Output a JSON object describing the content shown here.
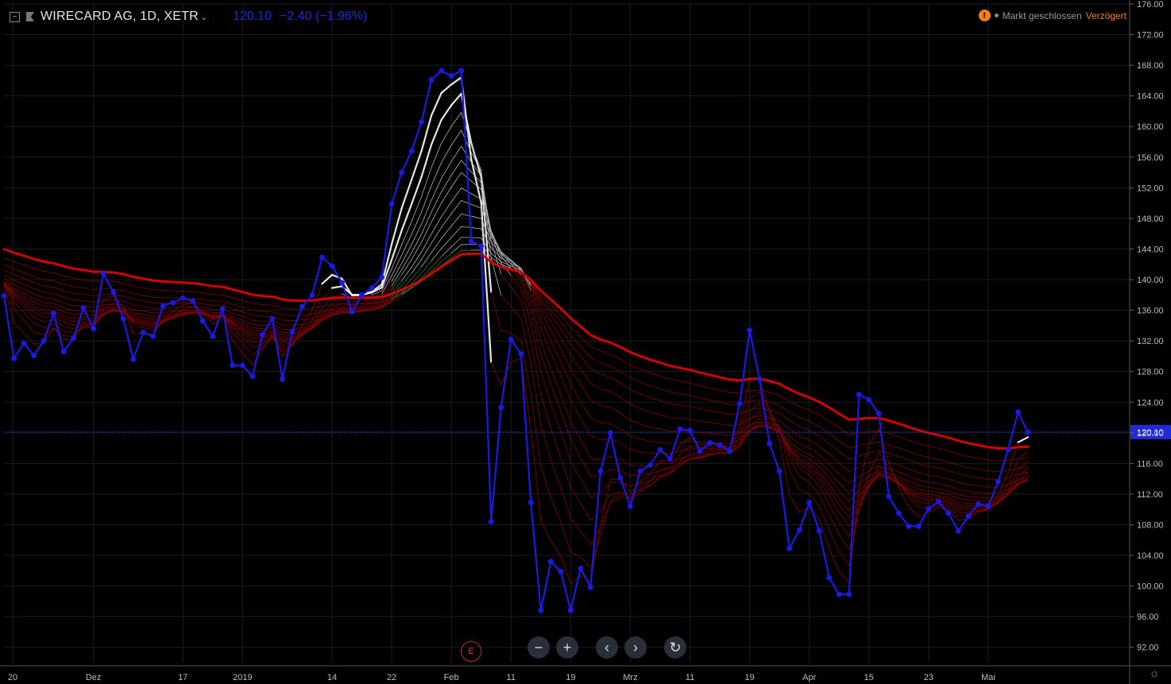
{
  "header": {
    "symbol": "WIRECARD AG, 1D, XETR",
    "last": "120.10",
    "change": "−2.40 (−1.96%)"
  },
  "status": {
    "warn_glyph": "!",
    "market": "Markt geschlossen",
    "delay": "Verzögert"
  },
  "controls": {
    "zoom_out": "−",
    "zoom_in": "+",
    "prev": "‹",
    "next": "›",
    "reset": "↻",
    "earnings": "E"
  },
  "colors": {
    "background": "#000000",
    "price": "#1a1ae6",
    "ribbon_dark": "#8b0000",
    "ribbon_bright": "#d50000",
    "ribbon_light": "#f2f2f2",
    "cross": "#2e7d32",
    "last_line": "#1f2bd8",
    "grid": "#1c1c1c"
  },
  "chart_data": {
    "type": "line",
    "ylim": [
      90,
      176
    ],
    "yticks": [
      92,
      96,
      100,
      104,
      108,
      112,
      116,
      120,
      124,
      128,
      132,
      136,
      140,
      144,
      148,
      152,
      156,
      160,
      164,
      168,
      172,
      176
    ],
    "ytick_labels": [
      "92.00",
      "96.00",
      "100.00",
      "104.00",
      "108.00",
      "112.00",
      "116.00",
      "120.00",
      "124.00",
      "128.00",
      "132.00",
      "136.00",
      "140.00",
      "144.00",
      "148.00",
      "152.00",
      "156.00",
      "160.00",
      "164.00",
      "168.00",
      "172.00",
      "176.00"
    ],
    "x_tick_labels": [
      "20",
      "Dez",
      "17",
      "2019",
      "14",
      "22",
      "Feb",
      "11",
      "19",
      "Mrz",
      "11",
      "19",
      "Apr",
      "15",
      "23",
      "Mai"
    ],
    "x_tick_index": [
      0,
      9,
      18,
      24,
      33,
      39,
      45,
      51,
      57,
      63,
      69,
      75,
      81,
      87,
      93,
      99
    ],
    "last_value": 120.1,
    "series": [
      {
        "values": [
          137.9,
          129.7,
          131.7,
          130.1,
          132.0,
          135.6,
          130.6,
          132.4,
          136.3,
          133.6,
          140.8,
          138.4,
          134.9,
          129.6,
          133.1,
          132.6,
          136.6,
          137.0,
          137.6,
          137.2,
          134.6,
          132.6,
          136.2,
          128.8,
          128.8,
          127.4,
          132.8,
          134.9,
          127.0,
          133.2,
          136.5,
          138.0,
          142.9,
          141.8,
          139.6,
          135.8,
          138.0,
          138.9,
          140.3,
          149.9,
          154.0,
          156.8,
          160.6,
          166.1,
          167.3,
          166.6,
          167.3,
          145.0,
          144.4,
          108.4,
          123.3,
          132.2,
          130.3,
          110.9,
          96.8,
          103.2,
          101.9,
          96.8,
          102.3,
          99.8,
          115.0,
          120.0,
          114.1,
          110.4,
          115.0,
          115.8,
          117.8,
          116.6,
          120.5,
          120.3,
          117.6,
          118.7,
          118.4,
          117.6,
          123.8,
          133.4,
          127.0,
          118.6,
          115.0,
          104.9,
          107.3,
          110.9,
          107.2,
          101.1,
          98.9,
          98.9,
          125.0,
          124.3,
          122.5,
          111.7,
          109.5,
          107.8,
          107.8,
          110.1,
          111.0,
          109.5,
          107.2,
          109.1,
          110.7,
          110.4,
          113.6,
          117.8,
          122.7,
          120.1
        ]
      }
    ]
  }
}
